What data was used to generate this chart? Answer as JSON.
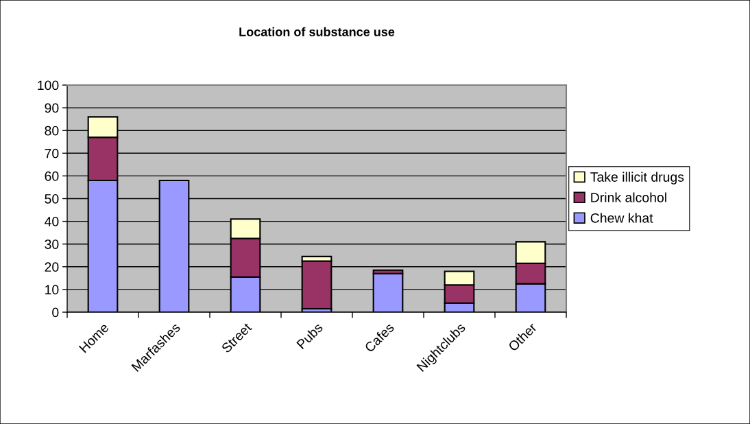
{
  "chart_data": {
    "type": "bar",
    "title": "Location of substance use",
    "categories": [
      "Home",
      "Marfashes",
      "Street",
      "Pubs",
      "Cafes",
      "Nightclubs",
      "Other"
    ],
    "stacked": true,
    "series": [
      {
        "name": "Chew khat",
        "color": "#9999ff",
        "values": [
          58,
          58,
          15.5,
          1.5,
          17,
          4,
          12.5
        ]
      },
      {
        "name": "Drink alcohol",
        "color": "#993366",
        "values": [
          19,
          null,
          17,
          21,
          1.5,
          8,
          9
        ]
      },
      {
        "name": "Take illicit drugs",
        "color": "#ffffcc",
        "values": [
          9,
          null,
          8.5,
          2,
          null,
          6,
          9.5
        ]
      }
    ],
    "ylim": [
      0,
      100
    ],
    "yticks": [
      0,
      10,
      20,
      30,
      40,
      50,
      60,
      70,
      80,
      90,
      100
    ],
    "grid": "y",
    "legend": "right"
  }
}
